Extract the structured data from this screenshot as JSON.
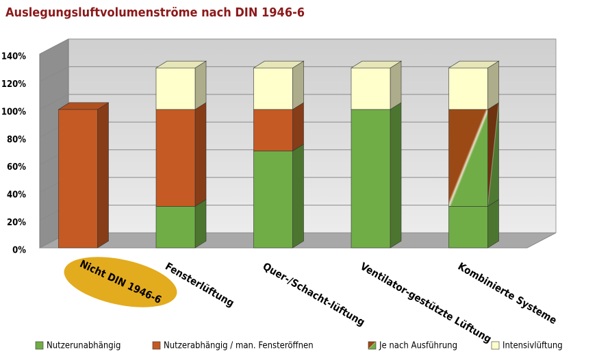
{
  "chart_data": {
    "type": "bar3d_stacked",
    "title": "Auslegungsluftvolumenströme nach DIN 1946-6",
    "categories": [
      "Nicht DIN 1946-6",
      "Fensterlüftung",
      "Quer-/Schacht-lüftung",
      "Ventilator-gestützte Lüftung",
      "Kombinierte Systeme"
    ],
    "highlight_category": 0,
    "highlight_color": "#e3ab1e",
    "series": [
      {
        "name": "Nutzerunabhängig",
        "color": "#70ad47",
        "values": [
          0,
          30,
          70,
          100,
          30
        ]
      },
      {
        "name": "Nutzerabhängig / man. Fensteröffnen",
        "color": "#c55a24",
        "values": [
          100,
          70,
          30,
          0,
          0
        ]
      },
      {
        "name": "Je nach Ausführung",
        "colors": [
          "#9c4a15",
          "#70ad47"
        ],
        "values": [
          0,
          0,
          0,
          0,
          70
        ]
      },
      {
        "name": "Intensivlüftung",
        "color": "#ffffcc",
        "values": [
          0,
          30,
          30,
          30,
          30
        ]
      }
    ],
    "ylim": [
      0,
      140
    ],
    "yticks": [
      {
        "value": 0,
        "label": "0%"
      },
      {
        "value": 20,
        "label": "20%"
      },
      {
        "value": 40,
        "label": "40%"
      },
      {
        "value": 60,
        "label": "60%"
      },
      {
        "value": 80,
        "label": "80%"
      },
      {
        "value": 100,
        "label": "100%"
      },
      {
        "value": 120,
        "label": "120%"
      },
      {
        "value": 140,
        "label": "140%"
      }
    ],
    "grid": true,
    "legend": "bottom"
  }
}
